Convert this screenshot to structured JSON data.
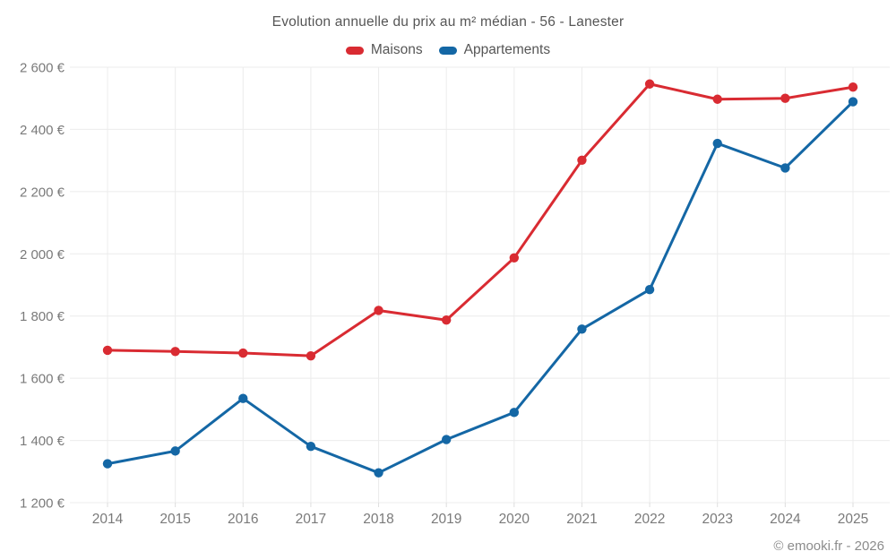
{
  "title": "Evolution annuelle du prix au m² médian - 56 - Lanester",
  "footer": "© emooki.fr - 2026",
  "colors": {
    "maisons": "#d92b32",
    "appartements": "#1467a5",
    "grid": "#ececec",
    "tick_label": "#7a7a7a",
    "title_text": "#565656",
    "watermark": "#8c8c8c"
  },
  "chart_data": {
    "type": "line",
    "x": [
      2014,
      2015,
      2016,
      2017,
      2018,
      2019,
      2020,
      2021,
      2022,
      2023,
      2024,
      2025
    ],
    "series": [
      {
        "name": "Maisons",
        "color": "#d92b32",
        "values": [
          1690,
          1686,
          1681,
          1672,
          1818,
          1787,
          1987,
          2301,
          2546,
          2497,
          2500,
          2536
        ]
      },
      {
        "name": "Appartements",
        "color": "#1467a5",
        "values": [
          1325,
          1366,
          1535,
          1381,
          1296,
          1403,
          1490,
          1758,
          1885,
          2355,
          2276,
          2489
        ]
      }
    ],
    "title": "Evolution annuelle du prix au m² médian - 56 - Lanester",
    "xlabel": "",
    "ylabel": "",
    "ylim": [
      1200,
      2600
    ],
    "ytick_step": 200,
    "ytick_suffix": "€",
    "grid": true,
    "legend_position": "top",
    "marker": "circle"
  }
}
